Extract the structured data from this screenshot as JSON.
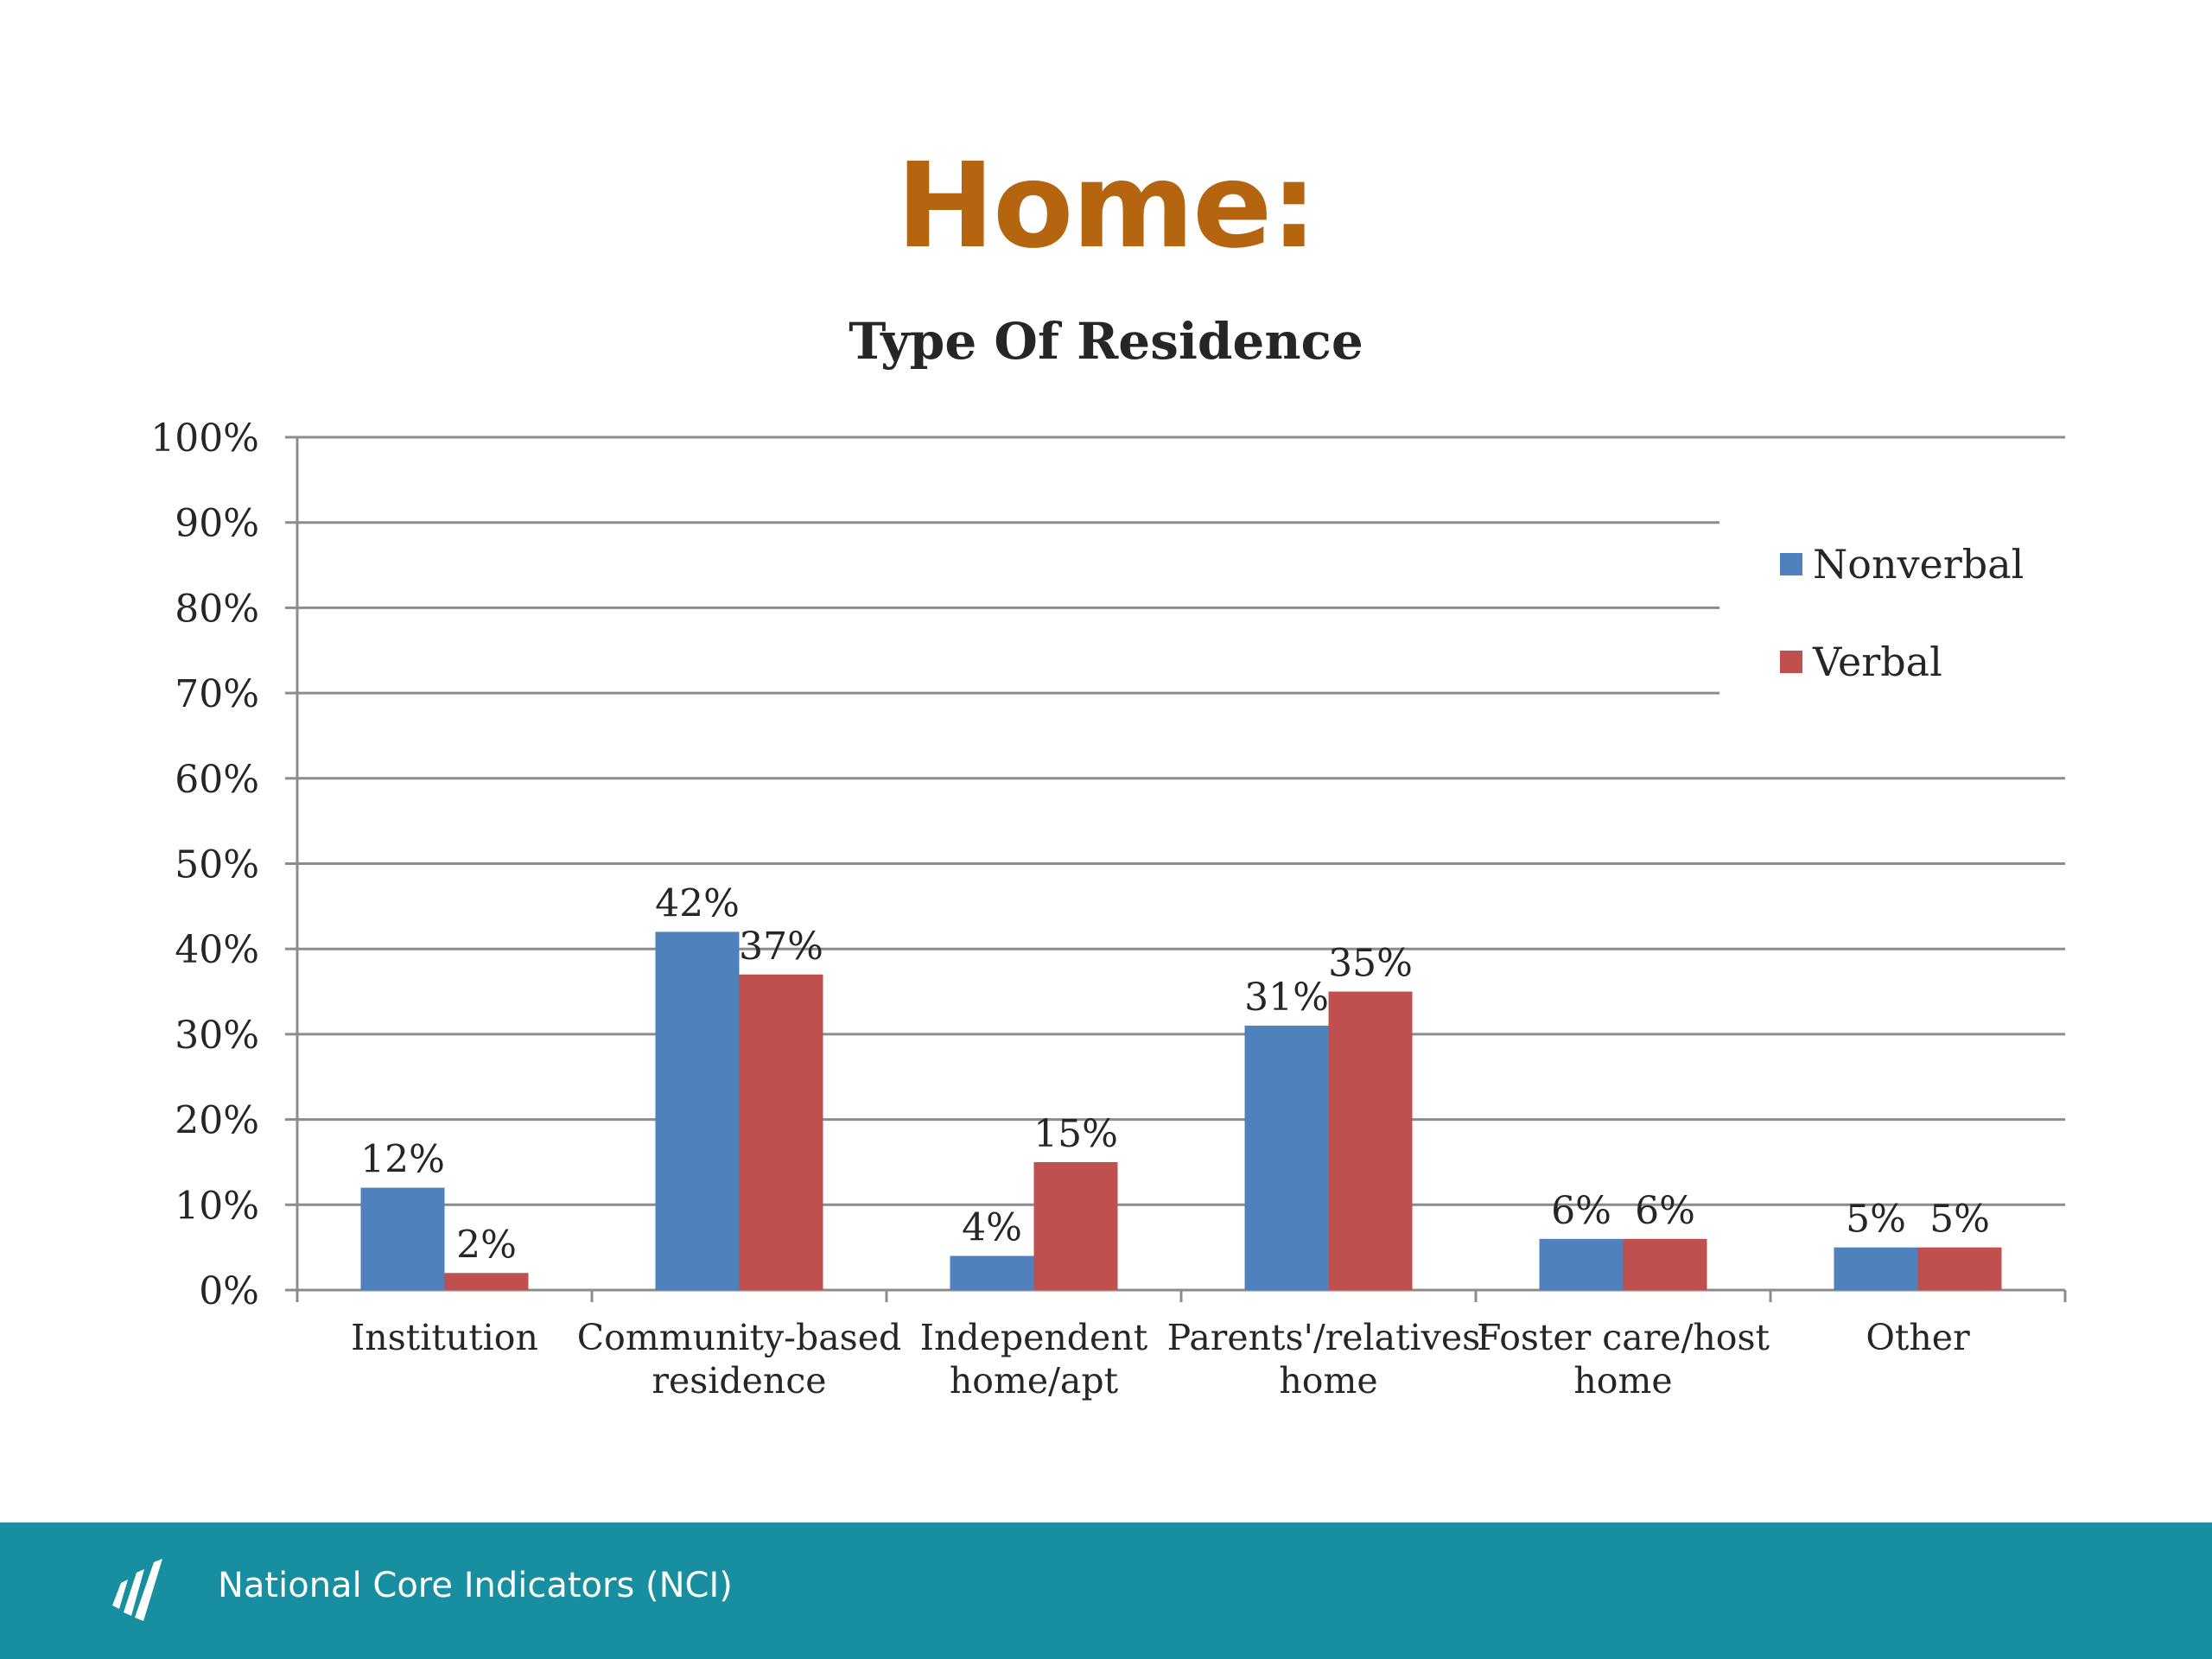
{
  "slide": {
    "title": "Home:"
  },
  "footer": {
    "text": "National Core Indicators (NCI)",
    "logo_icon": "nci-logo-icon"
  },
  "colors": {
    "title": "#B5650F",
    "footer_band": "#178FA1",
    "nonverbal": "#4F81BD",
    "verbal": "#C0504D",
    "gridline": "#8C8C8C"
  },
  "chart_data": {
    "type": "bar",
    "title": "Type Of Residence",
    "categories": [
      [
        "Institution"
      ],
      [
        "Community-based",
        "residence"
      ],
      [
        "Independent",
        "home/apt"
      ],
      [
        "Parents'/relatives'",
        "home"
      ],
      [
        "Foster care/host",
        "home"
      ],
      [
        "Other"
      ]
    ],
    "series": [
      {
        "name": "Nonverbal",
        "color": "#4F81BD",
        "values": [
          12,
          42,
          4,
          31,
          6,
          5
        ],
        "labels": [
          "12%",
          "42%",
          "4%",
          "31%",
          "6%",
          "5%"
        ]
      },
      {
        "name": "Verbal",
        "color": "#C0504D",
        "values": [
          2,
          37,
          15,
          35,
          6,
          5
        ],
        "labels": [
          "2%",
          "37%",
          "15%",
          "35%",
          "6%",
          "5%"
        ]
      }
    ],
    "ylim": [
      0,
      100
    ],
    "yticks": [
      "0%",
      "10%",
      "20%",
      "30%",
      "40%",
      "50%",
      "60%",
      "70%",
      "80%",
      "90%",
      "100%"
    ],
    "grid": true,
    "legend_position": "top-right"
  }
}
